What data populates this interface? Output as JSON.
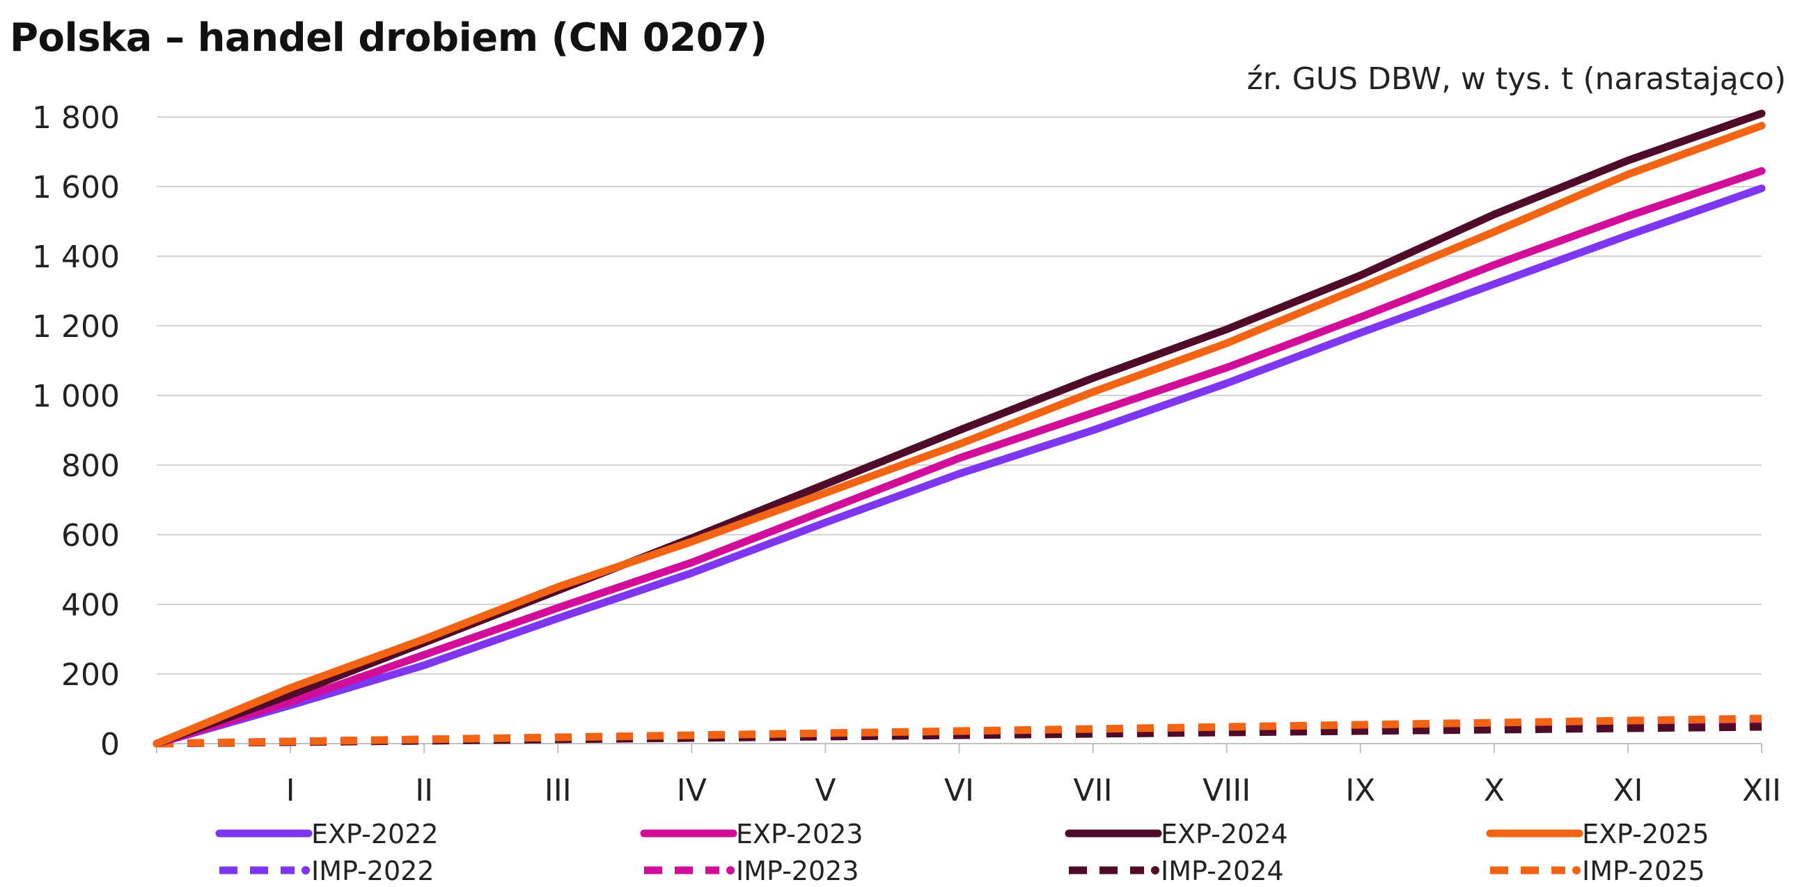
{
  "title": "Polska – handel drobiem (CN 0207)",
  "subtitle": "źr. GUS DBW, w tys. t (narastająco)",
  "chart_data": {
    "type": "line",
    "title": "Polska – handel drobiem (CN 0207)",
    "subtitle": "źr. GUS DBW, w tys. t (narastająco)",
    "xlabel": "",
    "ylabel": "",
    "categories": [
      "",
      "I",
      "II",
      "III",
      "IV",
      "V",
      "VI",
      "VII",
      "VIII",
      "IX",
      "X",
      "XI",
      "XII"
    ],
    "ylim": [
      0,
      1800
    ],
    "yticks": [
      0,
      200,
      400,
      600,
      800,
      1000,
      1200,
      1400,
      1600,
      1800
    ],
    "ytick_labels": [
      "0",
      "200",
      "400",
      "600",
      "800",
      "1 000",
      "1 200",
      "1 400",
      "1 600",
      "1 800"
    ],
    "grid": "horizontal",
    "legend": "bottom",
    "series": [
      {
        "name": "EXP-2022",
        "color": "#7f36f0",
        "dash": "solid",
        "values": [
          0,
          110,
          225,
          360,
          490,
          635,
          775,
          900,
          1035,
          1180,
          1320,
          1460,
          1595
        ]
      },
      {
        "name": "EXP-2023",
        "color": "#d10d9a",
        "dash": "solid",
        "values": [
          0,
          120,
          255,
          390,
          520,
          670,
          820,
          950,
          1080,
          1225,
          1375,
          1515,
          1645
        ]
      },
      {
        "name": "EXP-2024",
        "color": "#4e0b2a",
        "dash": "solid",
        "values": [
          0,
          140,
          290,
          440,
          590,
          745,
          900,
          1050,
          1190,
          1345,
          1520,
          1675,
          1810
        ]
      },
      {
        "name": "EXP-2025",
        "color": "#f26313",
        "dash": "solid",
        "values": [
          0,
          160,
          300,
          450,
          580,
          720,
          860,
          1010,
          1150,
          1310,
          1470,
          1635,
          1775
        ]
      },
      {
        "name": "IMP-2022",
        "color": "#7f36f0",
        "dash": "dashed",
        "values": [
          0,
          5,
          10,
          14,
          18,
          22,
          26,
          30,
          34,
          38,
          42,
          46,
          50
        ]
      },
      {
        "name": "IMP-2023",
        "color": "#d10d9a",
        "dash": "dashed",
        "values": [
          0,
          6,
          12,
          17,
          22,
          27,
          32,
          37,
          42,
          47,
          52,
          57,
          62
        ]
      },
      {
        "name": "IMP-2024",
        "color": "#4e0b2a",
        "dash": "dashed",
        "values": [
          0,
          4,
          8,
          12,
          16,
          20,
          24,
          28,
          32,
          36,
          40,
          44,
          48
        ]
      },
      {
        "name": "IMP-2025",
        "color": "#f26313",
        "dash": "dashed",
        "values": [
          0,
          6,
          12,
          18,
          24,
          30,
          36,
          42,
          48,
          54,
          60,
          66,
          72
        ]
      }
    ]
  }
}
